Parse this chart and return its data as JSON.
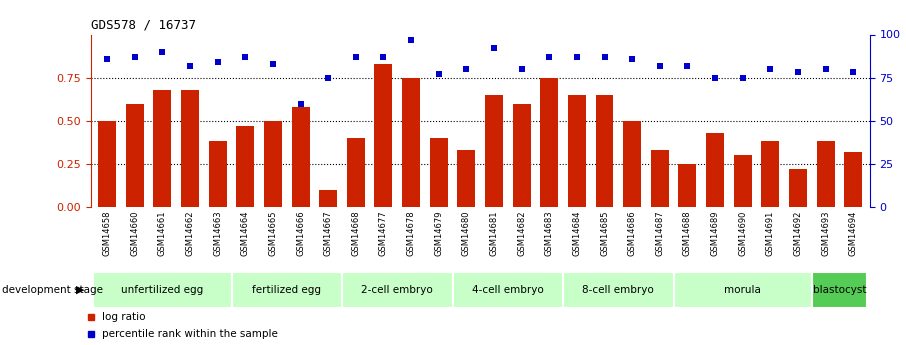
{
  "title": "GDS578 / 16737",
  "samples": [
    "GSM14658",
    "GSM14660",
    "GSM14661",
    "GSM14662",
    "GSM14663",
    "GSM14664",
    "GSM14665",
    "GSM14666",
    "GSM14667",
    "GSM14668",
    "GSM14677",
    "GSM14678",
    "GSM14679",
    "GSM14680",
    "GSM14681",
    "GSM14682",
    "GSM14683",
    "GSM14684",
    "GSM14685",
    "GSM14686",
    "GSM14687",
    "GSM14688",
    "GSM14689",
    "GSM14690",
    "GSM14691",
    "GSM14692",
    "GSM14693",
    "GSM14694"
  ],
  "log_ratio": [
    0.5,
    0.6,
    0.68,
    0.68,
    0.38,
    0.47,
    0.5,
    0.58,
    0.1,
    0.4,
    0.83,
    0.75,
    0.4,
    0.33,
    0.65,
    0.6,
    0.75,
    0.65,
    0.65,
    0.5,
    0.33,
    0.25,
    0.43,
    0.3,
    0.38,
    0.22,
    0.38,
    0.32
  ],
  "percentile_rank": [
    86,
    87,
    90,
    82,
    84,
    87,
    83,
    60,
    75,
    87,
    87,
    97,
    77,
    80,
    92,
    80,
    87,
    87,
    87,
    86,
    82,
    82,
    75,
    75,
    80,
    78,
    80,
    78
  ],
  "stages": [
    {
      "label": "unfertilized egg",
      "start": 0,
      "end": 5,
      "color": "#c8ffc8"
    },
    {
      "label": "fertilized egg",
      "start": 5,
      "end": 9,
      "color": "#c8ffc8"
    },
    {
      "label": "2-cell embryo",
      "start": 9,
      "end": 13,
      "color": "#c8ffc8"
    },
    {
      "label": "4-cell embryo",
      "start": 13,
      "end": 17,
      "color": "#c8ffc8"
    },
    {
      "label": "8-cell embryo",
      "start": 17,
      "end": 21,
      "color": "#c8ffc8"
    },
    {
      "label": "morula",
      "start": 21,
      "end": 26,
      "color": "#c8ffc8"
    },
    {
      "label": "blastocyst",
      "start": 26,
      "end": 28,
      "color": "#55cc55"
    }
  ],
  "bar_color": "#cc2200",
  "dot_color": "#0000cc",
  "ylim_left": [
    0,
    1.0
  ],
  "ylim_right": [
    0,
    100
  ],
  "yticks_left": [
    0,
    0.25,
    0.5,
    0.75
  ],
  "yticks_right": [
    0,
    25,
    50,
    75,
    100
  ],
  "background_color": "#ffffff",
  "xlabel_dev": "development stage",
  "legend_log": "log ratio",
  "legend_pct": "percentile rank within the sample",
  "grid_vals": [
    0.25,
    0.5,
    0.75
  ]
}
